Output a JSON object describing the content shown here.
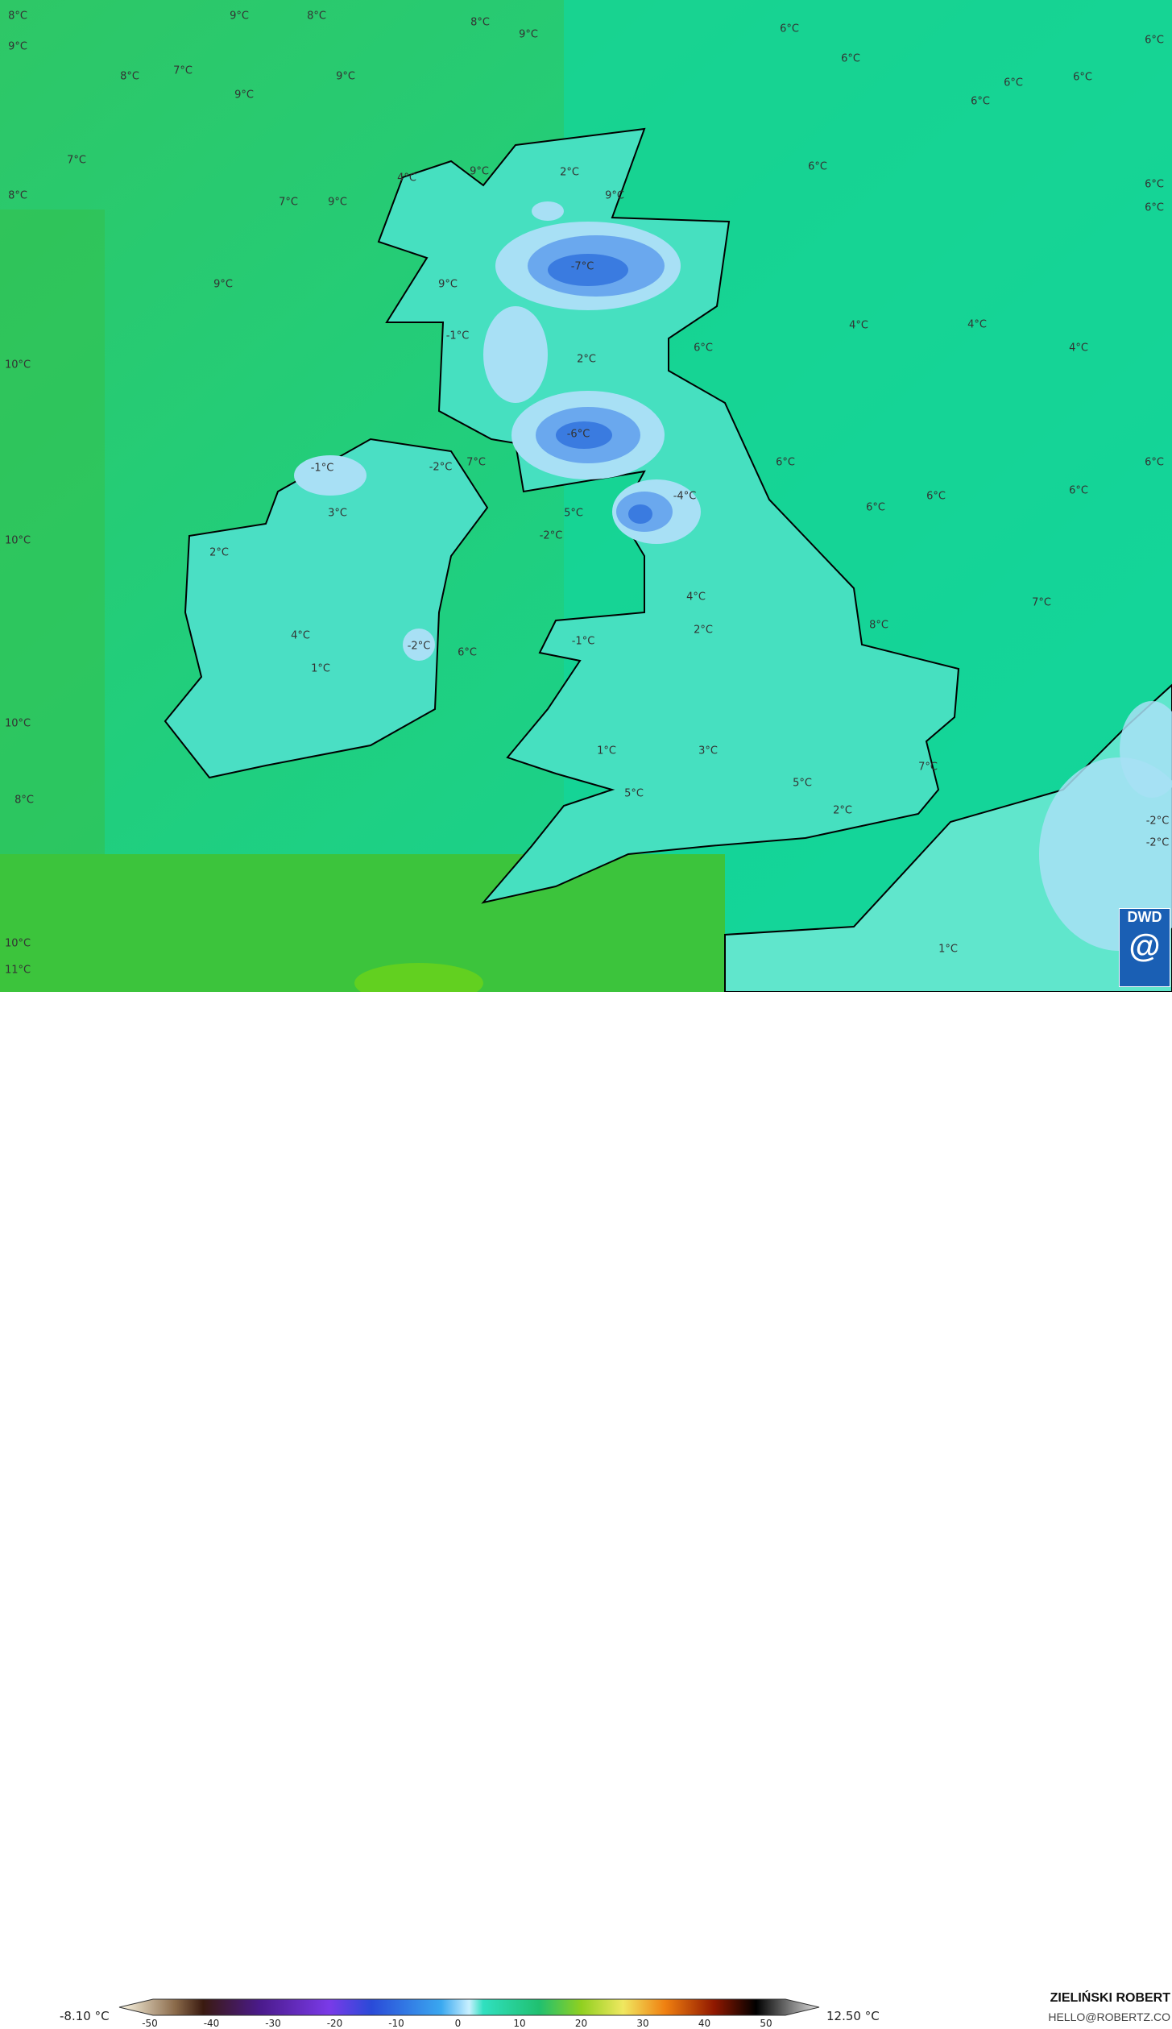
{
  "map": {
    "variable_unit": "°C",
    "labels": [
      "8°C",
      "9°C",
      "8°C",
      "8°C",
      "9°C",
      "6°C",
      "6°C",
      "9°C",
      "6°C",
      "8°C",
      "7°C",
      "9°C",
      "6°C",
      "6°C",
      "9°C",
      "6°C",
      "7°C",
      "6°C",
      "4°C",
      "9°C",
      "2°C",
      "8°C",
      "7°C",
      "9°C",
      "9°C",
      "6°C",
      "6°C",
      "-7°C",
      "9°C",
      "9°C",
      "4°C",
      "4°C",
      "-1°C",
      "6°C",
      "4°C",
      "2°C",
      "10°C",
      "-6°C",
      "-1°C",
      "-2°C",
      "7°C",
      "6°C",
      "6°C",
      "-4°C",
      "6°C",
      "3°C",
      "5°C",
      "6°C",
      "6°C",
      "-2°C",
      "10°C",
      "2°C",
      "4°C",
      "7°C",
      "8°C",
      "2°C",
      "4°C",
      "-1°C",
      "-2°C",
      "6°C",
      "1°C",
      "10°C",
      "1°C",
      "3°C",
      "7°C",
      "5°C",
      "5°C",
      "8°C",
      "2°C",
      "-2°C",
      "-2°C",
      "1°C",
      "10°C",
      "11°C"
    ],
    "colors": {
      "sea_warm": "#2fc85a",
      "sea_cool": "#14d49a",
      "land_cold": "#a8e0f5",
      "land_freeze": "#3a7be0",
      "coast": "#000000"
    }
  },
  "legend": {
    "min_value": "-8.10 °C",
    "max_value": "12.50 °C",
    "ticks": [
      "-50",
      "-40",
      "-30",
      "-20",
      "-10",
      "0",
      "10",
      "20",
      "30",
      "40",
      "50"
    ]
  },
  "credit": {
    "author": "ZIELIŃSKI ROBERT",
    "email": "HELLO@ROBERTZ.CO",
    "logo": "DWD"
  }
}
